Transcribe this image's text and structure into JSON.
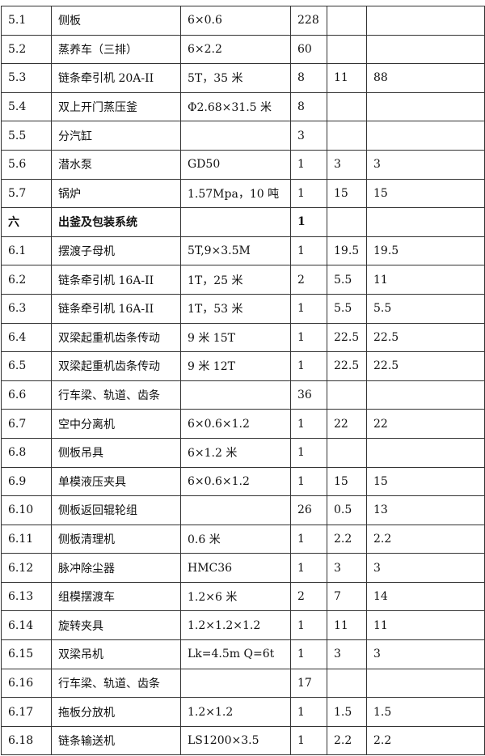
{
  "table": {
    "rows": [
      [
        "5.1",
        "侧板",
        "6×0.6",
        "228",
        null,
        null
      ],
      [
        "5.2",
        "蒸养车（三排）",
        "6×2.2",
        "60",
        null,
        null
      ],
      [
        "5.3",
        "链条牵引机 20A-II",
        "5T，35 米",
        "8",
        "11",
        "88"
      ],
      [
        "5.4",
        "双上开门蒸压釜",
        "Φ2.68×31.5 米",
        "8",
        null,
        null
      ],
      [
        "5.5",
        "分汽缸",
        null,
        "3",
        null,
        null
      ],
      [
        "5.6",
        "潜水泵",
        "GD50",
        "1",
        "3",
        "3"
      ],
      [
        "5.7",
        "锅炉",
        "1.57Mpa，10 吨",
        "1",
        "15",
        "15"
      ],
      [
        "六",
        "出釜及包装系统",
        null,
        "1",
        null,
        null
      ],
      [
        "6.1",
        "摆渡子母机",
        "5T,9×3.5M",
        "1",
        "19.5",
        "19.5"
      ],
      [
        "6.2",
        "链条牵引机 16A-II",
        "1T，25 米",
        "2",
        "5.5",
        "11"
      ],
      [
        "6.3",
        "链条牵引机 16A-II",
        "1T，53 米",
        "1",
        "5.5",
        "5.5"
      ],
      [
        "6.4",
        "双梁起重机齿条传动",
        "9 米 15T",
        "1",
        "22.5",
        "22.5"
      ],
      [
        "6.5",
        "双梁起重机齿条传动",
        "9 米 12T",
        "1",
        "22.5",
        "22.5"
      ],
      [
        "6.6",
        "行车梁、轨道、齿条",
        null,
        "36",
        null,
        null
      ],
      [
        "6.7",
        "空中分离机",
        "6×0.6×1.2",
        "1",
        "22",
        "22"
      ],
      [
        "6.8",
        "侧板吊具",
        "6×1.2 米",
        "1",
        null,
        null
      ],
      [
        "6.9",
        "单模液压夹具",
        "6×0.6×1.2",
        "1",
        "15",
        "15"
      ],
      [
        "6.10",
        "侧板返回辊轮组",
        null,
        "26",
        "0.5",
        "13"
      ],
      [
        "6.11",
        "侧板清理机",
        "0.6 米",
        "1",
        "2.2",
        "2.2"
      ],
      [
        "6.12",
        "脉冲除尘器",
        "HMC36",
        "1",
        "3",
        "3"
      ],
      [
        "6.13",
        "组模摆渡车",
        "1.2×6 米",
        "2",
        "7",
        "14"
      ],
      [
        "6.14",
        "旋转夹具",
        "1.2×1.2×1.2",
        "1",
        "11",
        "11"
      ],
      [
        "6.15",
        "双梁吊机",
        "Lk=4.5m Q=6t",
        "1",
        "3",
        "3"
      ],
      [
        "6.16",
        "行车梁、轨道、齿条",
        null,
        "17",
        null,
        null
      ],
      [
        "6.17",
        "拖板分放机",
        "1.2×1.2",
        "1",
        "1.5",
        "1.5"
      ],
      [
        "6.18",
        "链条输送机",
        "LS1200×3.5",
        "1",
        "2.2",
        "2.2"
      ]
    ]
  }
}
